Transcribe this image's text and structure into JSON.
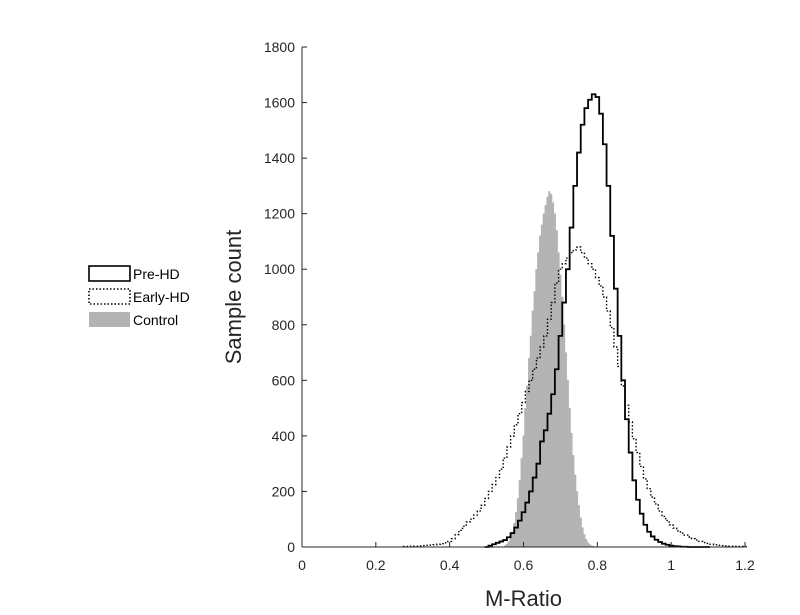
{
  "chart_data": {
    "type": "histogram",
    "xlabel": "M-Ratio",
    "ylabel": "Sample count",
    "xlim": [
      0,
      1.2
    ],
    "ylim": [
      0,
      1800
    ],
    "xticks": [
      "0",
      "0.2",
      "0.4",
      "0.6",
      "0.8",
      "1",
      "1.2"
    ],
    "yticks": [
      "0",
      "200",
      "400",
      "600",
      "800",
      "1000",
      "1200",
      "1400",
      "1600",
      "1800"
    ],
    "legend_position": "left, outside plot area",
    "colors": {
      "pre_hd": "#000000",
      "early_hd": "#000000",
      "control": "#b3b3b3"
    },
    "series": [
      {
        "name": "Control",
        "style": "filled-gray",
        "bin_width": 0.005,
        "x": [
          0.55,
          0.555,
          0.56,
          0.565,
          0.57,
          0.575,
          0.58,
          0.585,
          0.59,
          0.595,
          0.6,
          0.605,
          0.61,
          0.615,
          0.62,
          0.625,
          0.63,
          0.635,
          0.64,
          0.645,
          0.65,
          0.655,
          0.66,
          0.665,
          0.67,
          0.675,
          0.68,
          0.685,
          0.69,
          0.695,
          0.7,
          0.705,
          0.71,
          0.715,
          0.72,
          0.725,
          0.73,
          0.735,
          0.74,
          0.745,
          0.75,
          0.755,
          0.76,
          0.765,
          0.77,
          0.775,
          0.78,
          0.785,
          0.79,
          0.795,
          0.8
        ],
        "y": [
          5,
          10,
          20,
          35,
          55,
          85,
          125,
          175,
          240,
          320,
          400,
          500,
          580,
          680,
          760,
          850,
          920,
          1000,
          1060,
          1120,
          1160,
          1200,
          1230,
          1260,
          1280,
          1270,
          1240,
          1200,
          1140,
          1060,
          980,
          900,
          800,
          700,
          600,
          500,
          410,
          330,
          260,
          200,
          150,
          105,
          70,
          45,
          28,
          16,
          9,
          5,
          3,
          1,
          0
        ]
      },
      {
        "name": "Pre-HD",
        "style": "solid-step",
        "bin_width": 0.01,
        "x": [
          0.5,
          0.51,
          0.52,
          0.53,
          0.54,
          0.55,
          0.56,
          0.57,
          0.58,
          0.59,
          0.6,
          0.61,
          0.62,
          0.63,
          0.64,
          0.65,
          0.66,
          0.67,
          0.68,
          0.69,
          0.7,
          0.71,
          0.72,
          0.73,
          0.74,
          0.75,
          0.76,
          0.77,
          0.78,
          0.79,
          0.8,
          0.81,
          0.82,
          0.83,
          0.84,
          0.85,
          0.86,
          0.87,
          0.88,
          0.89,
          0.9,
          0.91,
          0.92,
          0.93,
          0.94,
          0.95,
          0.96,
          0.97,
          0.98,
          0.99,
          1.0,
          1.01,
          1.02,
          1.03,
          1.04,
          1.05,
          1.06,
          1.07,
          1.08,
          1.09,
          1.1
        ],
        "y": [
          0,
          5,
          10,
          15,
          20,
          25,
          35,
          50,
          70,
          95,
          125,
          160,
          200,
          250,
          300,
          380,
          420,
          480,
          550,
          640,
          760,
          880,
          1000,
          1150,
          1300,
          1420,
          1520,
          1580,
          1610,
          1630,
          1620,
          1560,
          1450,
          1300,
          1120,
          930,
          760,
          600,
          460,
          340,
          240,
          170,
          120,
          80,
          55,
          38,
          26,
          18,
          12,
          8,
          5,
          3,
          2,
          1,
          1,
          0,
          0,
          0,
          0,
          0,
          0
        ]
      },
      {
        "name": "Early-HD",
        "style": "dotted-step",
        "bin_width": 0.01,
        "x": [
          0.28,
          0.29,
          0.3,
          0.31,
          0.32,
          0.33,
          0.34,
          0.35,
          0.36,
          0.37,
          0.38,
          0.39,
          0.4,
          0.41,
          0.42,
          0.43,
          0.44,
          0.45,
          0.46,
          0.47,
          0.48,
          0.49,
          0.5,
          0.51,
          0.52,
          0.53,
          0.54,
          0.55,
          0.56,
          0.57,
          0.58,
          0.59,
          0.6,
          0.61,
          0.62,
          0.63,
          0.64,
          0.65,
          0.66,
          0.67,
          0.68,
          0.69,
          0.7,
          0.71,
          0.72,
          0.73,
          0.74,
          0.75,
          0.76,
          0.77,
          0.78,
          0.79,
          0.8,
          0.81,
          0.82,
          0.83,
          0.84,
          0.85,
          0.86,
          0.87,
          0.88,
          0.89,
          0.9,
          0.91,
          0.92,
          0.93,
          0.94,
          0.95,
          0.96,
          0.97,
          0.98,
          0.99,
          1.0,
          1.01,
          1.02,
          1.03,
          1.04,
          1.05,
          1.06,
          1.07,
          1.08,
          1.09,
          1.1,
          1.11,
          1.12,
          1.13,
          1.14,
          1.15,
          1.16,
          1.17,
          1.18,
          1.19,
          1.2
        ],
        "y": [
          2,
          2,
          3,
          3,
          4,
          5,
          6,
          7,
          8,
          10,
          12,
          15,
          20,
          30,
          45,
          60,
          75,
          90,
          100,
          115,
          130,
          150,
          175,
          200,
          225,
          250,
          280,
          320,
          360,
          400,
          440,
          480,
          520,
          560,
          600,
          640,
          680,
          720,
          760,
          820,
          880,
          950,
          1000,
          1020,
          1040,
          1060,
          1070,
          1080,
          1060,
          1040,
          1020,
          1000,
          970,
          940,
          900,
          850,
          790,
          720,
          650,
          580,
          510,
          450,
          390,
          340,
          290,
          245,
          210,
          180,
          155,
          130,
          110,
          95,
          80,
          68,
          58,
          50,
          43,
          36,
          30,
          25,
          20,
          16,
          13,
          10,
          8,
          6,
          5,
          4,
          3,
          3,
          2,
          2,
          1
        ]
      }
    ]
  },
  "legend": {
    "items": [
      {
        "label": "Pre-HD",
        "swatch": "solid-outline"
      },
      {
        "label": "Early-HD",
        "swatch": "dotted-outline"
      },
      {
        "label": "Control",
        "swatch": "gray-fill"
      }
    ]
  }
}
